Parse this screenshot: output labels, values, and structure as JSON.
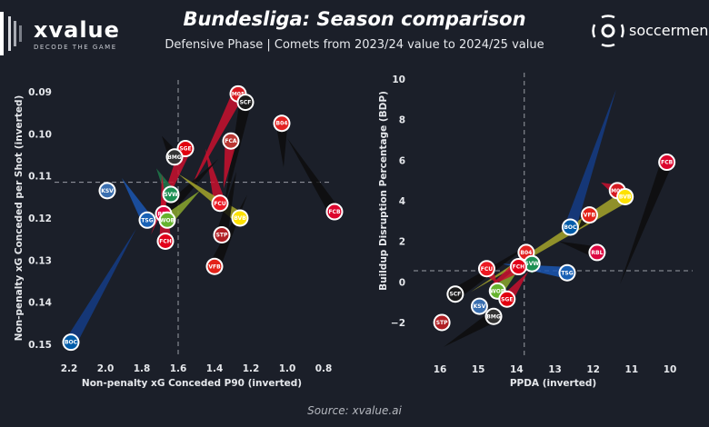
{
  "header": {
    "brand_left": "xvalue",
    "brand_left_tagline": "DECODE THE GAME",
    "title": "Bundesliga: Season comparison",
    "subtitle": "Defensive Phase | Comets from 2023/24 value to 2024/25 value",
    "brand_right": "soccermen"
  },
  "footer": {
    "source": "Source: xvalue.ai"
  },
  "teams": {
    "mainz": {
      "abbr": "M05",
      "color": "#d71920",
      "tail": "#c8102e"
    },
    "freiburg": {
      "abbr": "SCF",
      "color": "#1a1a1a",
      "tail": "#0d0d0d"
    },
    "leverkusen": {
      "abbr": "B04",
      "color": "#e32221",
      "tail": "#0d0d0d"
    },
    "frankfurt": {
      "abbr": "SGE",
      "color": "#e1000f",
      "tail": "#c8102e"
    },
    "augsburg": {
      "abbr": "FCA",
      "color": "#ba3733",
      "tail": "#c8102e"
    },
    "gladbach": {
      "abbr": "BMG",
      "color": "#333333",
      "tail": "#0d0d0d"
    },
    "kiel": {
      "abbr": "KSV",
      "color": "#3a6fb0",
      "tail": "#1f4e8c"
    },
    "bremen": {
      "abbr": "SVW",
      "color": "#1d9053",
      "tail": "#1d7a4a"
    },
    "union": {
      "abbr": "FCU",
      "color": "#eb1923",
      "tail": "#c8102e"
    },
    "leipzig": {
      "abbr": "RBL",
      "color": "#dd0741",
      "tail": "#0d0d0d"
    },
    "hoffenheim": {
      "abbr": "TSG",
      "color": "#1961b5",
      "tail": "#1a56b0"
    },
    "wolfsburg": {
      "abbr": "WOB",
      "color": "#65b32e",
      "tail": "#8aa82e"
    },
    "dortmund": {
      "abbr": "BVB",
      "color": "#fde100",
      "tail": "#a5a52a"
    },
    "heidenheim": {
      "abbr": "FCH",
      "color": "#e2001a",
      "tail": "#c8102e"
    },
    "stpauli": {
      "abbr": "STP",
      "color": "#b01f24",
      "tail": "#0d0d0d"
    },
    "stuttgart": {
      "abbr": "VFB",
      "color": "#e32219",
      "tail": "#0d0d0d"
    },
    "bayern": {
      "abbr": "FCB",
      "color": "#dc052d",
      "tail": "#0d0d0d"
    },
    "bochum": {
      "abbr": "BOC",
      "color": "#005ca9",
      "tail": "#143c85"
    }
  },
  "chart_data": [
    {
      "type": "scatter",
      "subtype": "comet",
      "title": "",
      "xlabel": "Non-penalty xG Conceded P90 (inverted)",
      "ylabel": "Non-penalty xG Conceded per Shot (inverted)",
      "x_inverted": true,
      "y_inverted": true,
      "xlim": [
        2.2,
        0.7
      ],
      "ylim": [
        0.088,
        0.152
      ],
      "xticks": [
        "2.2",
        "2.0",
        "1.8",
        "1.6",
        "1.4",
        "1.2",
        "1.0",
        "0.8"
      ],
      "xtick_values": [
        2.2,
        2.0,
        1.8,
        1.6,
        1.4,
        1.2,
        1.0,
        0.8
      ],
      "yticks": [
        "0.09",
        "0.10",
        "0.11",
        "0.12",
        "0.13",
        "0.14",
        "0.15"
      ],
      "ytick_values": [
        0.09,
        0.1,
        0.11,
        0.12,
        0.13,
        0.14,
        0.15
      ],
      "reference_lines": {
        "x": 1.6,
        "y": 0.1115
      },
      "grid": false,
      "points": [
        {
          "team": "mainz",
          "from": [
            1.53,
            0.1128
          ],
          "to": [
            1.27,
            0.0905
          ]
        },
        {
          "team": "freiburg",
          "from": [
            1.35,
            0.118
          ],
          "to": [
            1.23,
            0.0925
          ]
        },
        {
          "team": "leverkusen",
          "from": [
            1.02,
            0.108
          ],
          "to": [
            1.03,
            0.0975
          ]
        },
        {
          "team": "frankfurt",
          "from": [
            1.75,
            0.124
          ],
          "to": [
            1.56,
            0.1035
          ]
        },
        {
          "team": "augsburg",
          "from": [
            1.35,
            0.113
          ],
          "to": [
            1.31,
            0.1017
          ]
        },
        {
          "team": "gladbach",
          "from": [
            1.69,
            0.1005
          ],
          "to": [
            1.62,
            0.1055
          ]
        },
        {
          "team": "kiel",
          "from": [
            null,
            null
          ],
          "to": [
            1.99,
            0.1135
          ]
        },
        {
          "team": "bremen",
          "from": [
            1.72,
            0.1082
          ],
          "to": [
            1.64,
            0.1144
          ]
        },
        {
          "team": "union",
          "from": [
            1.45,
            0.1035
          ],
          "to": [
            1.37,
            0.1165
          ]
        },
        {
          "team": "leipzig",
          "from": [
            1.38,
            0.106
          ],
          "to": [
            1.68,
            0.119
          ]
        },
        {
          "team": "hoffenheim",
          "from": [
            1.91,
            0.1105
          ],
          "to": [
            1.77,
            0.1205
          ]
        },
        {
          "team": "wolfsburg",
          "from": [
            1.48,
            0.1135
          ],
          "to": [
            1.66,
            0.1205
          ]
        },
        {
          "team": "dortmund",
          "from": [
            1.6,
            0.1095
          ],
          "to": [
            1.26,
            0.12
          ]
        },
        {
          "team": "heidenheim",
          "from": [
            1.69,
            0.1095
          ],
          "to": [
            1.67,
            0.1255
          ]
        },
        {
          "team": "stpauli",
          "from": [
            1.28,
            0.109
          ],
          "to": [
            1.36,
            0.124
          ]
        },
        {
          "team": "stuttgart",
          "from": [
            1.22,
            0.1145
          ],
          "to": [
            1.4,
            0.1315
          ]
        },
        {
          "team": "bayern",
          "from": [
            1.0,
            0.101
          ],
          "to": [
            0.74,
            0.1185
          ]
        },
        {
          "team": "bochum",
          "from": [
            1.83,
            0.1225
          ],
          "to": [
            2.19,
            0.1495
          ]
        }
      ]
    },
    {
      "type": "scatter",
      "subtype": "comet",
      "title": "",
      "xlabel": "PPDA (inverted)",
      "ylabel": "Buildup Disruption Percentage (BDP)",
      "x_inverted": true,
      "y_inverted": false,
      "xlim": [
        16.8,
        9.6
      ],
      "ylim": [
        -3.5,
        10.5
      ],
      "xticks": [
        "16",
        "15",
        "14",
        "13",
        "12",
        "11",
        "10"
      ],
      "xtick_values": [
        16,
        15,
        14,
        13,
        12,
        11,
        10
      ],
      "yticks": [
        "10",
        "8",
        "6",
        "4",
        "2",
        "0",
        "−2"
      ],
      "ytick_values": [
        10,
        8,
        6,
        4,
        2,
        0,
        -2
      ],
      "reference_lines": {
        "x": 13.8,
        "y": 0.55
      },
      "grid": false,
      "points": [
        {
          "team": "bayern",
          "from": [
            11.3,
            -0.1
          ],
          "to": [
            10.08,
            5.9
          ]
        },
        {
          "team": "mainz",
          "from": [
            11.8,
            4.9
          ],
          "to": [
            11.37,
            4.5
          ]
        },
        {
          "team": "dortmund",
          "from": [
            15.2,
            -0.5
          ],
          "to": [
            11.17,
            4.2
          ]
        },
        {
          "team": "stuttgart",
          "from": [
            12.4,
            2.6
          ],
          "to": [
            12.1,
            3.3
          ]
        },
        {
          "team": "bochum",
          "from": [
            11.4,
            9.5
          ],
          "to": [
            12.6,
            2.7
          ]
        },
        {
          "team": "leipzig",
          "from": [
            12.9,
            2.0
          ],
          "to": [
            11.9,
            1.45
          ]
        },
        {
          "team": "leverkusen",
          "from": [
            13.9,
            1.9
          ],
          "to": [
            13.75,
            1.45
          ]
        },
        {
          "team": "bremen",
          "from": [
            13.6,
            0.4
          ],
          "to": [
            13.6,
            0.9
          ]
        },
        {
          "team": "hoffenheim",
          "from": [
            14.4,
            0.9
          ],
          "to": [
            12.68,
            0.45
          ]
        },
        {
          "team": "union",
          "from": [
            14.5,
            -0.1
          ],
          "to": [
            14.78,
            0.65
          ]
        },
        {
          "team": "wolfsburg",
          "from": [
            13.85,
            0.9
          ],
          "to": [
            14.5,
            -0.45
          ]
        },
        {
          "team": "frankfurt",
          "from": [
            13.7,
            0.5
          ],
          "to": [
            14.25,
            -0.85
          ]
        },
        {
          "team": "freiburg",
          "from": [
            13.7,
            1.8
          ],
          "to": [
            15.6,
            -0.6
          ]
        },
        {
          "team": "kiel",
          "from": [
            null,
            null
          ],
          "to": [
            14.97,
            -1.2
          ]
        },
        {
          "team": "gladbach",
          "from": [
            15.9,
            -3.2
          ],
          "to": [
            14.6,
            -1.7
          ]
        },
        {
          "team": "stpauli",
          "from": [
            null,
            null
          ],
          "to": [
            15.95,
            -2.0
          ]
        },
        {
          "team": "heidenheim",
          "from": [
            14.7,
            -0.2
          ],
          "to": [
            13.95,
            0.75
          ]
        }
      ]
    }
  ]
}
